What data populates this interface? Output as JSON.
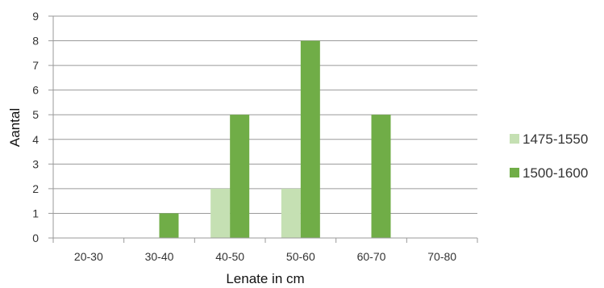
{
  "chart_data": {
    "type": "bar",
    "xlabel": "Lenate in cm",
    "ylabel": "Aantal",
    "categories": [
      "20-30",
      "30-40",
      "40-50",
      "50-60",
      "60-70",
      "70-80"
    ],
    "series": [
      {
        "name": "1475-1550",
        "values": [
          0,
          0,
          2,
          2,
          0,
          0
        ],
        "color": "#c5e0b3"
      },
      {
        "name": "1500-1600",
        "values": [
          0,
          1,
          5,
          8,
          5,
          0
        ],
        "color": "#70ad47"
      }
    ],
    "ylim": [
      0,
      9
    ],
    "yticks": [
      "0",
      "1",
      "2",
      "3",
      "4",
      "5",
      "6",
      "7",
      "8",
      "9"
    ],
    "grid": true,
    "legend": "right"
  }
}
